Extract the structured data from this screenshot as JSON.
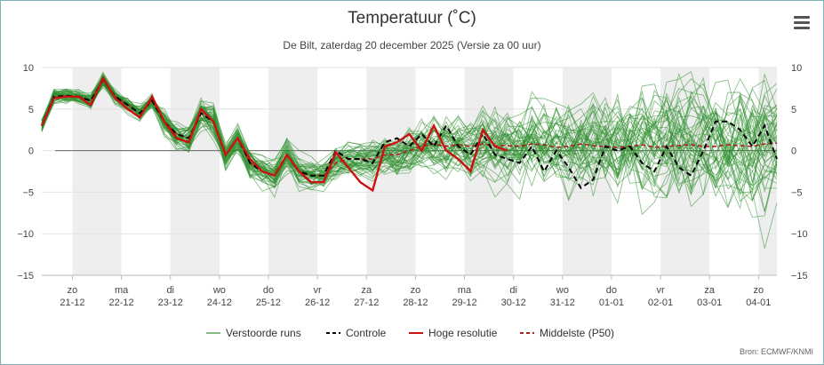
{
  "chart_data": {
    "type": "line",
    "title": "Temperatuur (˚C)",
    "subtitle": "De Bilt, zaterdag 20 december 2025 (Versie za 00 uur)",
    "credit": "Bron: ECMWF/KNMI",
    "ylim": [
      -15,
      10
    ],
    "yticks": [
      "10",
      "5",
      "0",
      "−5",
      "−10",
      "−15"
    ],
    "ytick_values": [
      10,
      5,
      0,
      -5,
      -10,
      -15
    ],
    "days": [
      {
        "dow": "zo",
        "date": "21-12"
      },
      {
        "dow": "ma",
        "date": "22-12"
      },
      {
        "dow": "di",
        "date": "23-12"
      },
      {
        "dow": "wo",
        "date": "24-12"
      },
      {
        "dow": "do",
        "date": "25-12"
      },
      {
        "dow": "vr",
        "date": "26-12"
      },
      {
        "dow": "za",
        "date": "27-12"
      },
      {
        "dow": "zo",
        "date": "28-12"
      },
      {
        "dow": "ma",
        "date": "29-12"
      },
      {
        "dow": "di",
        "date": "30-12"
      },
      {
        "dow": "wo",
        "date": "31-12"
      },
      {
        "dow": "do",
        "date": "01-01"
      },
      {
        "dow": "vr",
        "date": "02-01"
      },
      {
        "dow": "za",
        "date": "03-01"
      },
      {
        "dow": "zo",
        "date": "04-01"
      }
    ],
    "x_start_hours": 0,
    "x_end_hours": 360,
    "step_hours": 6,
    "legend": [
      {
        "key": "perturbed",
        "label": "Verstoorde runs",
        "color": "#58a858",
        "dash": "solid"
      },
      {
        "key": "control",
        "label": "Controle",
        "color": "#000000",
        "dash": "dashed"
      },
      {
        "key": "hires",
        "label": "Hoge resolutie",
        "color": "#cc1111",
        "dash": "solid"
      },
      {
        "key": "median",
        "label": "Middelste (P50)",
        "color": "#aa2222",
        "dash": "dashed"
      }
    ],
    "series": [
      {
        "name": "Middelste (P50)",
        "values": [
          3,
          6.5,
          6.6,
          6.5,
          6,
          8.5,
          6.5,
          5.5,
          4.5,
          6,
          3.5,
          2,
          1.5,
          4.5,
          3.5,
          -0.5,
          1.5,
          -1.5,
          -2.5,
          -3,
          -0.5,
          -2.5,
          -3,
          -3,
          -1.5,
          -1,
          -1,
          -1,
          -0.5,
          -0.5,
          0,
          0.5,
          0.8,
          0.5,
          0.7,
          0.5,
          0.8,
          0.6,
          0.6,
          0.5,
          0.8,
          0.7,
          0.4,
          0.5,
          0.8,
          0.6,
          0.5,
          0.4,
          0.5,
          0.7,
          0.4,
          0.5,
          0.6,
          0.7,
          0.5,
          0.5,
          0.7,
          0.6,
          0.5,
          0.8,
          0.9
        ]
      },
      {
        "name": "Controle",
        "values": [
          3,
          6.5,
          6.6,
          6.5,
          6,
          8.5,
          6.5,
          5.5,
          4.5,
          6,
          3.5,
          2,
          1.5,
          4.5,
          3.5,
          -0.5,
          1.5,
          -1.5,
          -2.5,
          -3,
          -0.5,
          -2.5,
          -3,
          -3,
          0,
          -1,
          -1,
          -1.5,
          1,
          1.5,
          0.5,
          2,
          0.5,
          3,
          0.5,
          -0.5,
          2,
          -0.5,
          -1,
          -1.5,
          0.5,
          -2.5,
          0,
          -2,
          -4.5,
          -3.5,
          0.5,
          0,
          0.5,
          -1.5,
          -2.5,
          0.5,
          -2,
          -3,
          0,
          3.5,
          3.5,
          2.5,
          0.5,
          3,
          -1
        ]
      },
      {
        "name": "Hoge resolutie",
        "values": [
          3,
          6.3,
          6.5,
          6.5,
          5.5,
          8.7,
          6.3,
          5,
          4,
          6.5,
          3.5,
          1.5,
          1,
          5,
          3.5,
          -0.5,
          1.5,
          -1,
          -2.5,
          -3,
          -0.5,
          -2.5,
          -3.8,
          -3.8,
          -0.2,
          -2,
          -3.8,
          -4.8,
          0.5,
          1,
          2,
          0,
          3,
          0,
          -1,
          -2.5,
          2.5,
          0.5,
          0,
          null,
          null,
          null,
          null,
          null,
          null,
          null,
          null,
          null,
          null,
          null,
          null,
          null,
          null,
          null,
          null,
          null,
          null,
          null,
          null,
          null,
          null
        ]
      }
    ]
  }
}
